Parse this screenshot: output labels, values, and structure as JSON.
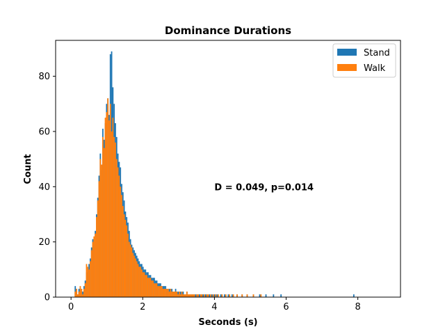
{
  "chart_data": {
    "type": "bar",
    "subtype": "overlaid-histogram",
    "title": "Dominance Durations",
    "xlabel": "Seconds (s)",
    "ylabel": "Count",
    "xlim": [
      -0.43,
      9.19
    ],
    "ylim": [
      0,
      93
    ],
    "xticks": [
      0,
      2,
      4,
      6,
      8
    ],
    "yticks": [
      0,
      20,
      40,
      60,
      80
    ],
    "grid": false,
    "legend": {
      "placement": "top-right",
      "entries": [
        "Stand",
        "Walk"
      ]
    },
    "annotation": {
      "text": "D = 0.049, p=0.014",
      "x": 4.0,
      "y": 40
    },
    "bin_width": 0.035,
    "series": [
      {
        "name": "Stand",
        "color": "#1f77b4",
        "bin_start": 0.1,
        "counts": [
          4,
          3,
          1,
          3,
          2,
          3,
          2,
          4,
          6,
          9,
          10,
          12,
          14,
          18,
          21,
          19,
          24,
          30,
          36,
          44,
          52,
          46,
          61,
          57,
          63,
          70,
          72,
          66,
          88,
          89,
          76,
          70,
          63,
          58,
          52,
          49,
          47,
          41,
          38,
          35,
          31,
          29,
          27,
          24,
          21,
          19,
          18,
          17,
          16,
          15,
          14,
          13,
          12,
          12,
          11,
          10,
          10,
          9,
          9,
          8,
          8,
          7,
          7,
          7,
          6,
          6,
          5,
          5,
          5,
          4,
          4,
          4,
          4,
          3,
          3,
          3,
          3,
          3,
          2,
          2,
          3,
          2,
          2,
          2,
          2,
          1,
          2,
          1,
          1,
          2,
          1,
          1,
          1,
          1,
          1,
          1,
          1,
          1,
          1,
          1,
          1,
          1,
          1,
          0,
          1,
          1,
          0,
          1,
          0,
          1,
          0,
          1,
          0,
          1,
          0,
          0,
          1,
          0,
          0,
          1,
          0,
          0,
          1,
          0,
          0,
          1,
          0,
          0,
          0,
          1,
          0,
          0,
          0,
          1,
          0,
          0,
          0,
          1,
          0,
          0,
          0,
          0,
          1,
          0,
          0,
          0,
          0,
          1,
          0,
          0,
          0,
          0,
          1,
          0,
          0,
          0,
          0,
          0,
          1,
          0,
          0,
          0,
          0,
          0,
          1,
          0,
          0,
          0,
          0,
          0,
          0,
          0,
          0,
          0,
          0,
          0,
          0,
          0,
          0,
          0,
          0,
          0,
          0,
          0,
          0,
          0,
          0,
          0,
          0,
          0,
          0,
          0,
          0,
          0,
          0,
          0,
          0,
          0,
          0,
          0,
          0,
          0,
          0,
          0,
          0,
          0,
          0,
          0,
          0,
          0,
          0,
          0,
          0,
          0,
          0,
          0,
          0,
          0,
          0,
          0,
          0,
          0,
          1
        ]
      },
      {
        "name": "Walk",
        "color": "#ff7f0e",
        "bin_start": 0.1,
        "counts": [
          2,
          3,
          1,
          2,
          4,
          3,
          1,
          3,
          5,
          12,
          11,
          10,
          13,
          17,
          20,
          22,
          23,
          29,
          35,
          42,
          50,
          48,
          58,
          54,
          65,
          67,
          72,
          64,
          70,
          60,
          65,
          58,
          56,
          50,
          47,
          44,
          40,
          37,
          33,
          30,
          28,
          26,
          23,
          20,
          19,
          18,
          16,
          15,
          14,
          13,
          12,
          11,
          11,
          10,
          9,
          9,
          8,
          8,
          7,
          7,
          7,
          6,
          6,
          5,
          5,
          5,
          4,
          4,
          4,
          4,
          3,
          3,
          3,
          3,
          3,
          2,
          3,
          2,
          2,
          2,
          2,
          2,
          1,
          2,
          1,
          2,
          1,
          1,
          1,
          2,
          1,
          1,
          1,
          1,
          1,
          1,
          0,
          1,
          1,
          0,
          1,
          1,
          0,
          1,
          0,
          1,
          1,
          0,
          1,
          0,
          1,
          0,
          1,
          0,
          1,
          0,
          0,
          1,
          0,
          0,
          1,
          0,
          0,
          1,
          0,
          0,
          1,
          0,
          0,
          1,
          0,
          0,
          0,
          1,
          0,
          0,
          0,
          1,
          0,
          0,
          0,
          0,
          1,
          0,
          0,
          0,
          0,
          0,
          1
        ]
      }
    ]
  }
}
